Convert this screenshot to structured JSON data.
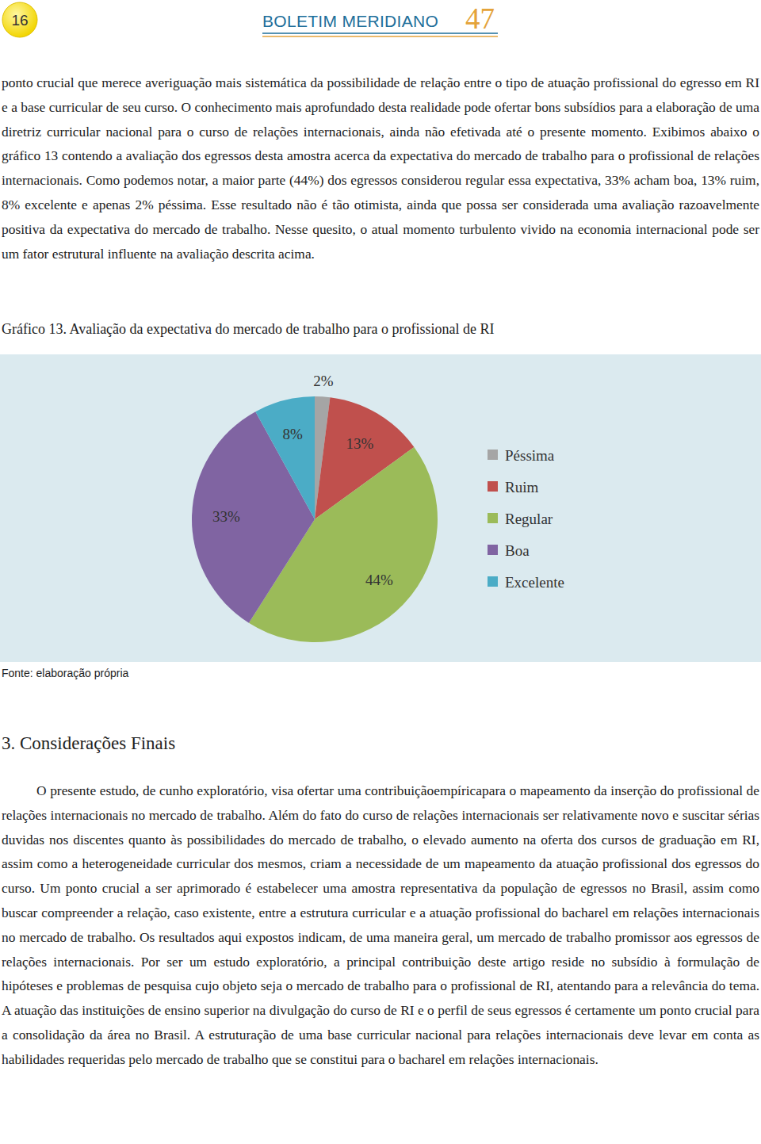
{
  "header": {
    "page_number": "16",
    "journal": "BOLETIM MERIDIANO",
    "issue": "47"
  },
  "body": {
    "paragraphs": [
      "ponto crucial que merece averiguação mais sistemática da possibilidade de relação entre o tipo de atuação profissional do egresso em RI e a base curricular de seu curso. O conhecimento mais aprofundado desta realidade pode ofertar bons subsídios para a elaboração de uma diretriz curricular nacional para o curso de relações internacionais, ainda não efetivada até o presente momento. Exibimos abaixo o gráfico 13 contendo a avaliação dos egressos desta amostra acerca da expectativa do mercado de trabalho para o profissional de relações internacionais. Como podemos notar, a maior parte (44%) dos egressos considerou regular essa expectativa, 33% acham boa, 13% ruim, 8% excelente e apenas 2% péssima. Esse resultado não é tão otimista, ainda que possa ser considerada uma avaliação razoavelmente positiva da expectativa do mercado de trabalho. Nesse quesito, o atual momento turbulento vivido na economia internacional pode ser um fator estrutural influente na avaliação descrita acima."
    ]
  },
  "chart_data": {
    "type": "pie",
    "title": "Gráfico 13. Avaliação da expectativa do mercado de trabalho para o profissional de RI",
    "categories": [
      "Péssima",
      "Ruim",
      "Regular",
      "Boa",
      "Excelente"
    ],
    "values": [
      2,
      13,
      44,
      33,
      8
    ],
    "value_labels": [
      "2%",
      "13%",
      "44%",
      "33%",
      "8%"
    ],
    "colors": [
      "#a5a5a5",
      "#c0504d",
      "#9bbb59",
      "#8064a2",
      "#4bacc6"
    ],
    "data_labels": true,
    "legend": "right"
  },
  "figure_source": "Fonte: elaboração própria",
  "section": {
    "heading": "3. Considerações Finais",
    "paragraphs": [
      "O presente estudo, de cunho exploratório, visa ofertar uma contribuiçãoempíricapara o mapeamento da inserção do profissional de relações internacionais no mercado de trabalho. Além do fato do curso de relações internacionais ser relativamente novo e suscitar sérias duvidas nos discentes quanto às possibilidades do mercado de trabalho, o elevado aumento na oferta dos cursos de graduação em RI, assim como a heterogeneidade curricular dos mesmos, criam a necessidade de um mapeamento da atuação profissional dos egressos do curso. Um ponto crucial a ser aprimorado é estabelecer uma amostra representativa da população de egressos no Brasil, assim como buscar compreender a relação, caso existente, entre a estrutura curricular e a atuação profissional do bacharel em relações internacionais no mercado de trabalho. Os resultados aqui expostos indicam, de uma maneira geral, um mercado de trabalho promissor aos egressos de relações internacionais. Por ser um estudo exploratório, a principal contribuição deste artigo reside no subsídio à formulação de hipóteses e problemas de pesquisa cujo objeto seja o mercado de trabalho para o profissional de RI, atentando para a relevância do tema. A atuação das instituições de ensino superior na divulgação do curso de RI e o perfil de seus egressos é certamente um ponto crucial para a consolidação da área no Brasil. A estruturação de uma base curricular nacional para relações internacionais deve levar em conta as habilidades requeridas pelo mercado de trabalho que se constitui para o bacharel em relações internacionais."
    ]
  }
}
